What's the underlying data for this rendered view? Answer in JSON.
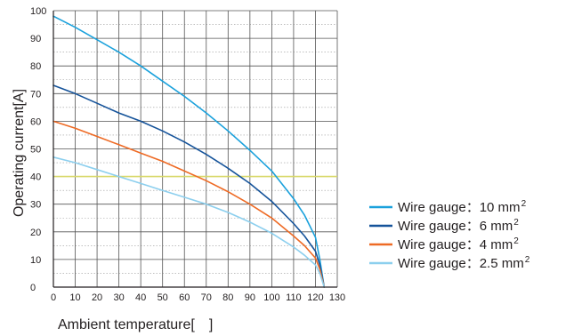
{
  "chart_data": {
    "type": "line",
    "xlabel": "Ambient temperature[　]",
    "ylabel": "Operating current[A]",
    "xlim": [
      0,
      130
    ],
    "ylim": [
      0,
      100
    ],
    "xticks": [
      0,
      10,
      20,
      30,
      40,
      50,
      60,
      70,
      80,
      90,
      100,
      110,
      120,
      130
    ],
    "yticks": [
      0,
      10,
      20,
      30,
      40,
      50,
      60,
      70,
      80,
      90,
      100
    ],
    "grid": true,
    "legend_position": "right",
    "reference_line": {
      "y": 40,
      "color": "#d8d86a"
    },
    "series": [
      {
        "name": "Wire gauge：10 mm²",
        "legend_main": "Wire gauge：10 mm",
        "legend_sup": "2",
        "color": "#1aa1dc",
        "x": [
          0,
          10,
          20,
          30,
          40,
          50,
          60,
          70,
          80,
          90,
          100,
          110,
          115,
          120,
          122,
          124
        ],
        "y": [
          98,
          94,
          89.5,
          85,
          80,
          74.5,
          69,
          63,
          56.5,
          49.5,
          42,
          32,
          26,
          18,
          10,
          0
        ]
      },
      {
        "name": "Wire gauge：6 mm²",
        "legend_main": "Wire gauge：6 mm",
        "legend_sup": "2",
        "color": "#15539a",
        "x": [
          0,
          10,
          20,
          30,
          40,
          50,
          60,
          70,
          80,
          90,
          100,
          110,
          115,
          120,
          122,
          124
        ],
        "y": [
          73,
          70,
          66.5,
          63,
          60,
          56.5,
          52.5,
          48,
          43,
          37.5,
          31,
          23,
          18.5,
          13,
          8,
          0
        ]
      },
      {
        "name": "Wire gauge：4 mm²",
        "legend_main": "Wire gauge：4 mm",
        "legend_sup": "2",
        "color": "#ee6a24",
        "x": [
          0,
          10,
          20,
          30,
          40,
          50,
          60,
          70,
          80,
          90,
          100,
          110,
          115,
          120,
          122,
          124
        ],
        "y": [
          60,
          57.5,
          54.5,
          51.5,
          48.5,
          45.5,
          42,
          38.5,
          34.5,
          30,
          25,
          18.5,
          15,
          10.5,
          6.5,
          0
        ]
      },
      {
        "name": "Wire gauge：2.5 mm²",
        "legend_main": "Wire gauge：2.5 mm",
        "legend_sup": "2",
        "color": "#8ccfee",
        "x": [
          0,
          10,
          20,
          30,
          40,
          50,
          60,
          70,
          80,
          90,
          100,
          110,
          115,
          120,
          122,
          124
        ],
        "y": [
          47,
          45,
          42.5,
          40,
          37.5,
          35,
          32.5,
          30,
          27,
          23.5,
          19.5,
          14.5,
          11.5,
          8,
          5,
          0
        ]
      }
    ]
  }
}
